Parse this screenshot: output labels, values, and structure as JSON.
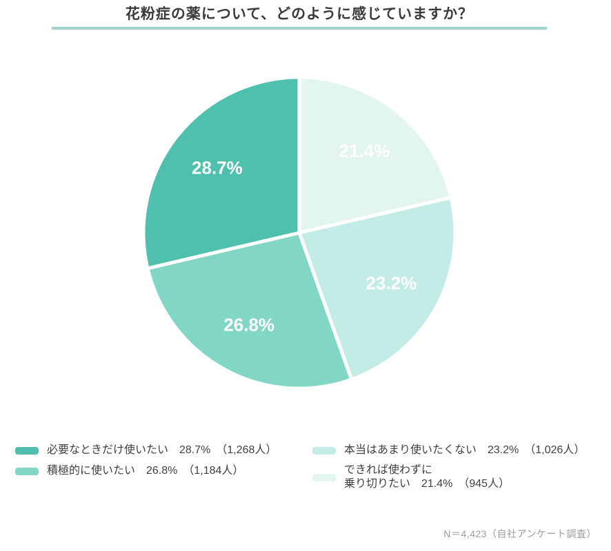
{
  "title": "花粉症の薬について、どのように感じていますか？",
  "accent_underline_color": "#9fd4cd",
  "chart_data": {
    "type": "pie",
    "title": "花粉症の薬について、どのように感じていますか？",
    "start_angle_deg": 0,
    "direction": "clockwise",
    "total_label": "N＝4,423",
    "total_n": 4423,
    "slices": [
      {
        "label": "できれば使わずに乗り切りたい",
        "pct": 21.4,
        "pct_label": "21.4%",
        "count": 945,
        "color": "#e3f5f1"
      },
      {
        "label": "本当はあまり使いたくない",
        "pct": 23.2,
        "pct_label": "23.2%",
        "count": 1026,
        "color": "#c3ece6"
      },
      {
        "label": "積極的に使いたい",
        "pct": 26.8,
        "pct_label": "26.8%",
        "count": 1184,
        "color": "#82d6c6"
      },
      {
        "label": "必要なときだけ使いたい",
        "pct": 28.7,
        "pct_label": "28.7%",
        "count": 1268,
        "color": "#4ec0ad"
      }
    ]
  },
  "legend": {
    "items": [
      {
        "color": "#4ec0ad",
        "line1": "必要なときだけ使いたい　28.7%　（1,268人）",
        "line2": ""
      },
      {
        "color": "#82d6c6",
        "line1": "積極的に使いたい　26.8%　（1,184人）",
        "line2": ""
      },
      {
        "color": "#c3ece6",
        "line1": "本当はあまり使いたくない　23.2%　（1,026人）",
        "line2": ""
      },
      {
        "color": "#e3f5f1",
        "line1": "できれば使わずに",
        "line2": "乗り切りたい　21.4%　（945人）"
      }
    ]
  },
  "footnote": "N＝4,423（自社アンケート調査）"
}
